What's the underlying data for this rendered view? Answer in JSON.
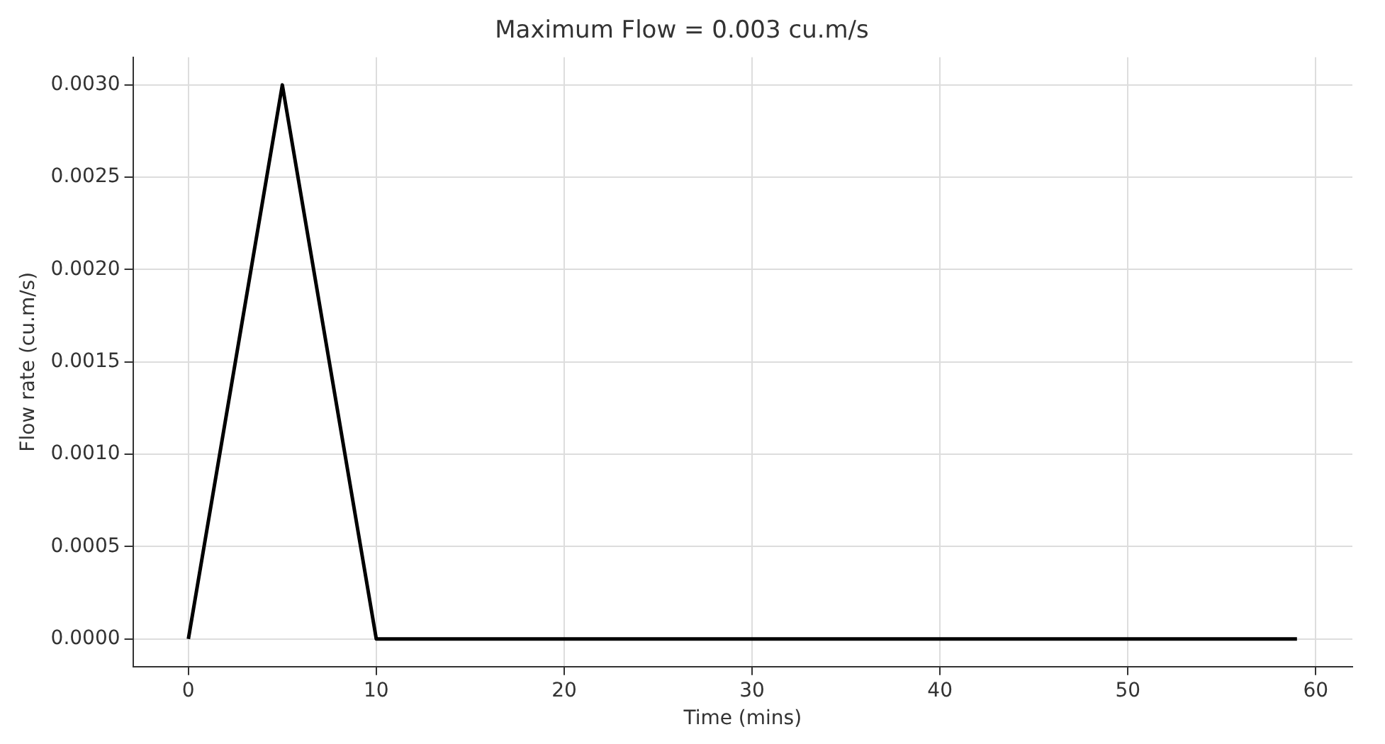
{
  "chart_data": {
    "type": "line",
    "title": "Maximum Flow = 0.003 cu.m/s",
    "xlabel": "Time (mins)",
    "ylabel": "Flow rate (cu.m/s)",
    "x": [
      0,
      5,
      10,
      59
    ],
    "series": [
      {
        "color": "#000000",
        "values": [
          0,
          0.003,
          0,
          0
        ]
      }
    ],
    "xlim": [
      -2.95,
      61.95
    ],
    "xticks": [
      0,
      10,
      20,
      30,
      40,
      50,
      60
    ],
    "ylim": [
      -0.00015,
      0.00315
    ],
    "yticks": [
      {
        "value": 0,
        "label": "0.0000"
      },
      {
        "value": 0.0005,
        "label": "0.0005"
      },
      {
        "value": 0.001,
        "label": "0.0010"
      },
      {
        "value": 0.0015,
        "label": "0.0015"
      },
      {
        "value": 0.002,
        "label": "0.0020"
      },
      {
        "value": 0.0025,
        "label": "0.0025"
      },
      {
        "value": 0.003,
        "label": "0.0030"
      }
    ],
    "grid": true,
    "legend": false,
    "marker": "none",
    "line_style": "solid"
  }
}
